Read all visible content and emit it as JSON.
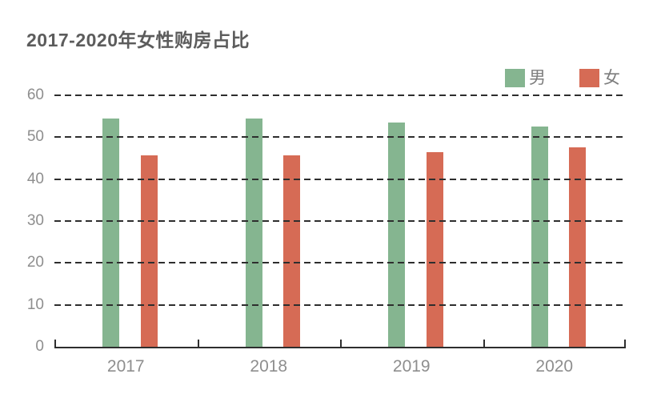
{
  "chart_data": {
    "type": "bar",
    "title": "2017-2020年女性购房占比",
    "categories": [
      "2017",
      "2018",
      "2019",
      "2020"
    ],
    "series": [
      {
        "name": "男",
        "color": "#85b590",
        "values": [
          54.4,
          54.4,
          53.6,
          52.5
        ]
      },
      {
        "name": "女",
        "color": "#d66b55",
        "values": [
          45.6,
          45.6,
          46.4,
          47.5
        ]
      }
    ],
    "xlabel": "",
    "ylabel": "",
    "ylim": [
      0,
      60
    ],
    "yticks": [
      0,
      10,
      20,
      30,
      40,
      50,
      60
    ],
    "grid": "horizontal-dashed",
    "grid_color": "#2e2e2e",
    "axis_label_color": "#8e8e8e",
    "title_color": "#5c5c5c",
    "legend_position": "top-right",
    "legend_labels": [
      "男",
      "女"
    ]
  }
}
